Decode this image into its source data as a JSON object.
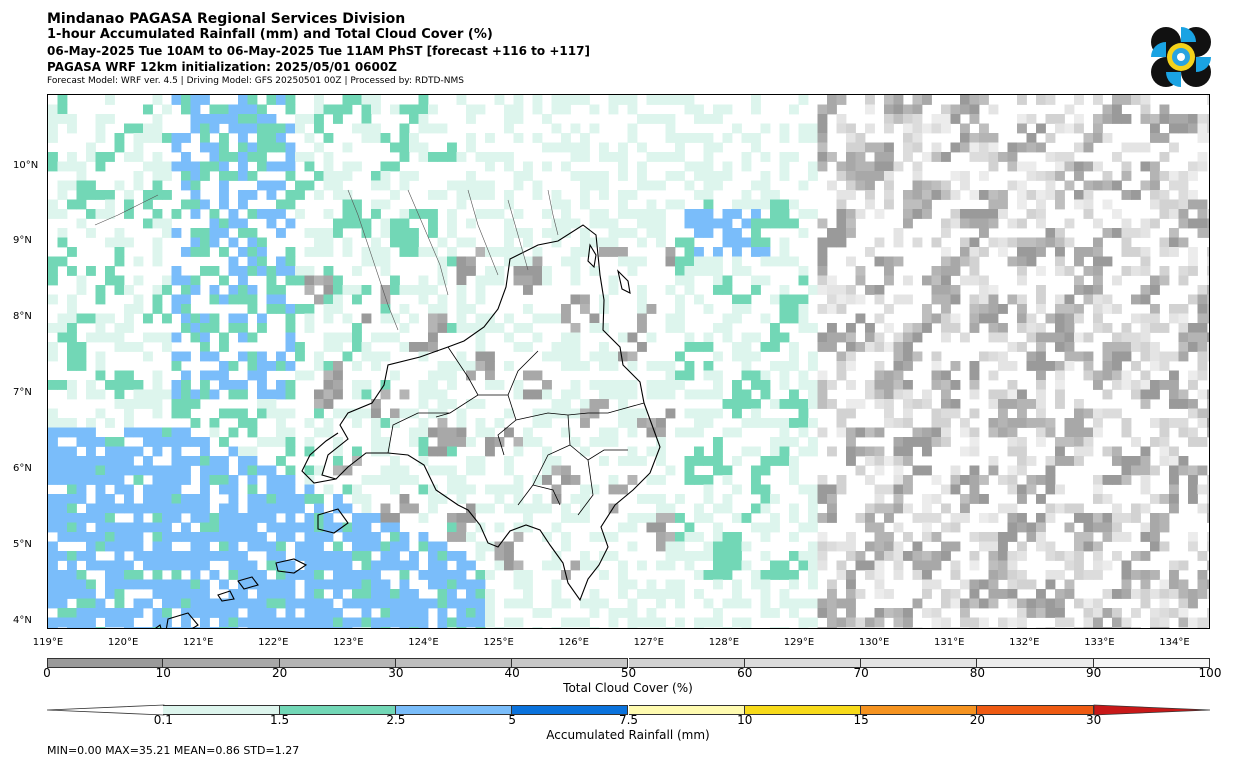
{
  "header": {
    "title": "Mindanao PAGASA Regional Services Division",
    "subtitle": "1-hour Accumulated Rainfall (mm) and Total Cloud Cover (%)",
    "valid_time": "06-May-2025 Tue 10AM to 06-May-2025 Tue 11AM PhST [forecast +116 to +117]",
    "init": "PAGASA WRF 12km initialization: 2025/05/01 0600Z",
    "model_info": "Forecast Model: WRF ver. 4.5 | Driving Model: GFS 20250501 00Z | Processed by: RDTD-NMS"
  },
  "map": {
    "lat_labels": [
      "10°N",
      "9°N",
      "8°N",
      "7°N",
      "6°N",
      "5°N",
      "4°N"
    ],
    "lon_labels": [
      "119°E",
      "120°E",
      "121°E",
      "122°E",
      "123°E",
      "124°E",
      "125°E",
      "126°E",
      "127°E",
      "128°E",
      "129°E",
      "130°E",
      "131°E",
      "132°E",
      "133°E",
      "134°E"
    ],
    "lon_range": [
      119,
      134.5
    ],
    "lat_range": [
      3.9,
      10.95
    ]
  },
  "cloud_bar": {
    "label": "Total Cloud Cover (%)",
    "ticks": [
      "0",
      "10",
      "20",
      "30",
      "40",
      "50",
      "60",
      "70",
      "80",
      "90",
      "100"
    ],
    "colors": [
      "#9a9a9a",
      "#a8a8a8",
      "#b4b4b4",
      "#bebebe",
      "#c8c8c8",
      "#d2d2d2",
      "#dcdcdc",
      "#e4e4e4",
      "#ececec",
      "#f6f6f6"
    ]
  },
  "rain_bar": {
    "label": "Accumulated Rainfall (mm)",
    "ticks": [
      "0.1",
      "1.5",
      "2.5",
      "5",
      "7.5",
      "10",
      "15",
      "20",
      "30"
    ],
    "colors": [
      "#ddf5ed",
      "#72d7b6",
      "#7abdfa",
      "#0a72dc",
      "#fffbb0",
      "#f7da1a",
      "#f59320",
      "#ee5a12",
      "#c81818"
    ]
  },
  "stats": "MIN=0.00   MAX=35.21   MEAN=0.86   STD=1.27"
}
